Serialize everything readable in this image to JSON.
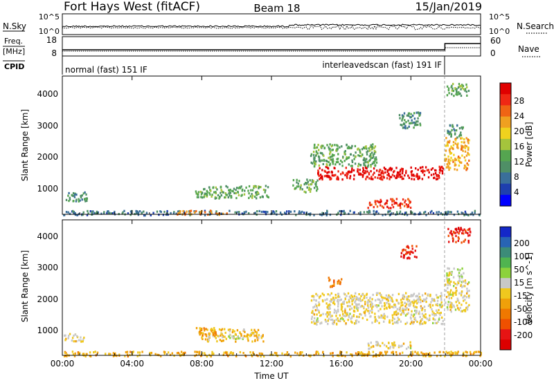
{
  "header": {
    "site": "Fort Hays West (fitACF)",
    "beam": "Beam 18",
    "date": "15/Jan/2019"
  },
  "panels": {
    "nsky": {
      "left_label": "N.Sky",
      "right_label": "N.Search",
      "left_ticks": [
        "10^5",
        "10^0"
      ],
      "right_ticks": [
        "10^5",
        "10^0"
      ]
    },
    "freq": {
      "left_label_1": "Freq.",
      "left_label_2": "[MHz]",
      "right_label": "Nave",
      "left_ticks": [
        "18",
        "8"
      ],
      "right_ticks": [
        "60",
        "0"
      ]
    },
    "cpid": {
      "label": "CPID",
      "segments": [
        {
          "text": "normal (fast) 151 IF",
          "start_hour": 0.0
        },
        {
          "text": "interleavedscan (fast) 191 IF",
          "start_hour": 21.9
        }
      ]
    }
  },
  "colorbars": {
    "power": {
      "title": "Power [dB]",
      "ticks": [
        "28",
        "24",
        "20",
        "16",
        "12",
        "8",
        "4"
      ],
      "colors": [
        "#0000ff",
        "#1e3fae",
        "#3a6f9a",
        "#4f8f66",
        "#55a550",
        "#a5c43c",
        "#f0d21e",
        "#f0a020",
        "#f06414",
        "#f02814",
        "#e00000"
      ]
    },
    "velocity": {
      "title": "Velocity [m s^-1]",
      "ticks": [
        "200",
        "100",
        "50",
        "15",
        "-15",
        "-50",
        "-100",
        "-200"
      ],
      "colors": [
        "#1428c8",
        "#2864b4",
        "#3c8c78",
        "#50b450",
        "#8cd23c",
        "#c8c8c8",
        "#f0c81e",
        "#f0a00a",
        "#f07800",
        "#f05000",
        "#e61414",
        "#dc0000"
      ]
    }
  },
  "axes": {
    "y_label": "Slant Range [km]",
    "y_ticks": [
      "4000",
      "3000",
      "2000",
      "1000"
    ],
    "x_label": "Time UT",
    "x_ticks": [
      "00:00",
      "04:00",
      "08:00",
      "12:00",
      "16:00",
      "20:00",
      "00:00"
    ]
  },
  "chart_data": [
    {
      "type": "heatmap",
      "title": "Power [dB]",
      "xlabel": "Time UT",
      "ylabel": "Slant Range [km]",
      "xlim": [
        0,
        24
      ],
      "ylim": [
        180,
        4500
      ],
      "colorbar_range": [
        0,
        30
      ],
      "regions": [
        {
          "t": [
            0.0,
            1.4
          ],
          "r": [
            600,
            900
          ],
          "value": 10
        },
        {
          "t": [
            0.0,
            24.0
          ],
          "r": [
            180,
            320
          ],
          "value": 7
        },
        {
          "t": [
            6.5,
            9.5
          ],
          "r": [
            200,
            330
          ],
          "value": 22
        },
        {
          "t": [
            7.6,
            11.8
          ],
          "r": [
            700,
            1100
          ],
          "value": 12
        },
        {
          "t": [
            13.2,
            14.6
          ],
          "r": [
            900,
            1300
          ],
          "value": 12
        },
        {
          "t": [
            14.6,
            21.8
          ],
          "r": [
            1300,
            1700
          ],
          "value": 28
        },
        {
          "t": [
            14.2,
            18.0
          ],
          "r": [
            1700,
            2400
          ],
          "value": 12
        },
        {
          "t": [
            17.5,
            20.0
          ],
          "r": [
            400,
            700
          ],
          "value": 26
        },
        {
          "t": [
            19.3,
            20.6
          ],
          "r": [
            2900,
            3400
          ],
          "value": 10
        },
        {
          "t": [
            21.9,
            23.3
          ],
          "r": [
            1600,
            2600
          ],
          "value": 20
        },
        {
          "t": [
            22.0,
            23.0
          ],
          "r": [
            2600,
            3000
          ],
          "value": 10
        },
        {
          "t": [
            22.0,
            23.3
          ],
          "r": [
            3900,
            4300
          ],
          "value": 12
        }
      ]
    },
    {
      "type": "heatmap",
      "title": "Velocity [m s^-1]",
      "xlabel": "Time UT",
      "ylabel": "Slant Range [km]",
      "xlim": [
        0,
        24
      ],
      "ylim": [
        180,
        4500
      ],
      "colorbar_range": [
        -200,
        200
      ],
      "regions": [
        {
          "t": [
            0.0,
            1.2
          ],
          "r": [
            650,
            900
          ],
          "value": 0
        },
        {
          "t": [
            0.0,
            24.0
          ],
          "r": [
            180,
            330
          ],
          "value": -40
        },
        {
          "t": [
            7.8,
            11.5
          ],
          "r": [
            650,
            1050
          ],
          "value": -30
        },
        {
          "t": [
            7.6,
            8.8
          ],
          "r": [
            850,
            1100
          ],
          "value": -60
        },
        {
          "t": [
            9.5,
            10.4
          ],
          "r": [
            720,
            820
          ],
          "value": 40
        },
        {
          "t": [
            14.2,
            21.8
          ],
          "r": [
            1200,
            2200
          ],
          "value": 0
        },
        {
          "t": [
            17.5,
            20.0
          ],
          "r": [
            420,
            650
          ],
          "value": 0
        },
        {
          "t": [
            15.2,
            16.0
          ],
          "r": [
            2400,
            2700
          ],
          "value": -80
        },
        {
          "t": [
            19.3,
            20.3
          ],
          "r": [
            3300,
            3700
          ],
          "value": -150
        },
        {
          "t": [
            21.9,
            23.3
          ],
          "r": [
            1600,
            2600
          ],
          "value": 0
        },
        {
          "t": [
            22.0,
            23.0
          ],
          "r": [
            2600,
            3000
          ],
          "value": 30
        },
        {
          "t": [
            22.1,
            23.4
          ],
          "r": [
            3800,
            4300
          ],
          "value": -150
        }
      ]
    }
  ]
}
